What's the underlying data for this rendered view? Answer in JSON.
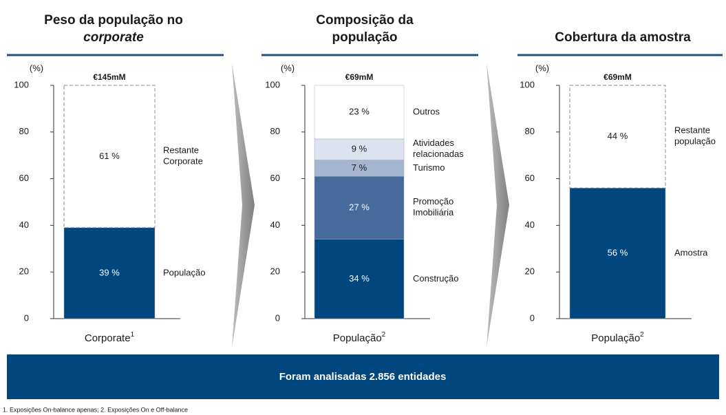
{
  "chart_data": [
    {
      "type": "stacked_bar",
      "title": [
        "Peso da população no",
        "corporate"
      ],
      "unit_label": "(%)",
      "total_label": "€145mM",
      "categories": [
        "Corporate"
      ],
      "category_superscript": "1",
      "ylim": [
        0,
        100
      ],
      "yticks": [
        0,
        20,
        40,
        60,
        80,
        100
      ],
      "series": [
        {
          "name": "População",
          "color": "#00467f",
          "values": [
            39
          ],
          "value_labels": [
            "39 %"
          ]
        },
        {
          "name": "Restante Corporate",
          "color": "#ffffff",
          "dashed": true,
          "values": [
            61
          ],
          "value_labels": [
            "61 %"
          ]
        }
      ]
    },
    {
      "type": "stacked_bar",
      "title": [
        "Composição da",
        "população"
      ],
      "unit_label": "(%)",
      "total_label": "€69mM",
      "categories": [
        "População"
      ],
      "category_superscript": "2",
      "ylim": [
        0,
        100
      ],
      "yticks": [
        0,
        20,
        40,
        60,
        80,
        100
      ],
      "series": [
        {
          "name": "Construção",
          "color": "#00467f",
          "values": [
            34
          ],
          "value_labels": [
            "34 %"
          ]
        },
        {
          "name": "Promoção Imobiliária",
          "color": "#466a9b",
          "values": [
            27
          ],
          "value_labels": [
            "27 %"
          ]
        },
        {
          "name": "Turismo",
          "color": "#a3b5cf",
          "values": [
            7
          ],
          "value_labels": [
            "7 %"
          ]
        },
        {
          "name": "Atividades relacionadas",
          "color": "#dde3ee",
          "values": [
            9
          ],
          "value_labels": [
            "9 %"
          ]
        },
        {
          "name": "Outros",
          "color": "#ffffff",
          "values": [
            23
          ],
          "value_labels": [
            "23 %"
          ]
        }
      ]
    },
    {
      "type": "stacked_bar",
      "title": [
        "Cobertura da amostra"
      ],
      "unit_label": "(%)",
      "total_label": "€69mM",
      "categories": [
        "População"
      ],
      "category_superscript": "2",
      "ylim": [
        0,
        100
      ],
      "yticks": [
        0,
        20,
        40,
        60,
        80,
        100
      ],
      "series": [
        {
          "name": "Amostra",
          "color": "#00467f",
          "values": [
            56
          ],
          "value_labels": [
            "56 %"
          ]
        },
        {
          "name": "Restante população",
          "color": "#ffffff",
          "dashed": true,
          "values": [
            44
          ],
          "value_labels": [
            "44 %"
          ]
        }
      ]
    }
  ],
  "banner": "Foram analisadas 2.856 entidades",
  "footnote": "1. Exposições On-balance apenas; 2. Exposições On e Off-balance"
}
